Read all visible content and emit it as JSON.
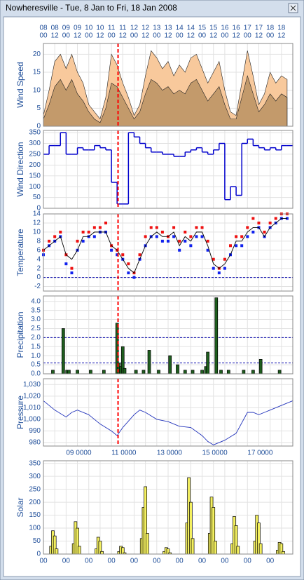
{
  "window": {
    "title": "Nowheresville - Tue, 8 Jan to Fri, 18 Jan 2008"
  },
  "chart_data": [
    {
      "type": "area",
      "y_label": "Wind Speed",
      "xlim": [
        "2008-01-08T00",
        "2008-01-19T00"
      ],
      "ylim": [
        0,
        23
      ],
      "yticks": [
        0,
        5,
        10,
        15,
        20
      ],
      "grid": true,
      "marker_x": "2008-01-11T07",
      "marker_color": "#ff0000",
      "xticks": [
        {
          "value": "2008-01-08T00",
          "label": [
            "08",
            "00"
          ]
        },
        {
          "value": "2008-01-08T12",
          "label": [
            "08",
            "12"
          ]
        },
        {
          "value": "2008-01-09T00",
          "label": [
            "09",
            "00"
          ]
        },
        {
          "value": "2008-01-09T12",
          "label": [
            "09",
            "12"
          ]
        },
        {
          "value": "2008-01-10T00",
          "label": [
            "10",
            "00"
          ]
        },
        {
          "value": "2008-01-10T12",
          "label": [
            "10",
            "12"
          ]
        },
        {
          "value": "2008-01-11T00",
          "label": [
            "11",
            "00"
          ]
        },
        {
          "value": "2008-01-11T12",
          "label": [
            "11",
            "12"
          ]
        },
        {
          "value": "2008-01-12T00",
          "label": [
            "12",
            "00"
          ]
        },
        {
          "value": "2008-01-12T12",
          "label": [
            "12",
            "12"
          ]
        },
        {
          "value": "2008-01-13T00",
          "label": [
            "13",
            "00"
          ]
        },
        {
          "value": "2008-01-13T12",
          "label": [
            "13",
            "12"
          ]
        },
        {
          "value": "2008-01-14T00",
          "label": [
            "14",
            "00"
          ]
        },
        {
          "value": "2008-01-14T12",
          "label": [
            "14",
            "12"
          ]
        },
        {
          "value": "2008-01-15T00",
          "label": [
            "15",
            "00"
          ]
        },
        {
          "value": "2008-01-15T12",
          "label": [
            "15",
            "12"
          ]
        },
        {
          "value": "2008-01-16T00",
          "label": [
            "16",
            "00"
          ]
        },
        {
          "value": "2008-01-16T12",
          "label": [
            "16",
            "12"
          ]
        },
        {
          "value": "2008-01-17T00",
          "label": [
            "17",
            "00"
          ]
        },
        {
          "value": "2008-01-17T12",
          "label": [
            "17",
            "12"
          ]
        },
        {
          "value": "2008-01-18T00",
          "label": [
            "18",
            "00"
          ]
        },
        {
          "value": "2008-01-18T12",
          "label": [
            "18",
            "12"
          ]
        }
      ],
      "x": [
        "2008-01-08T00",
        "2008-01-08T06",
        "2008-01-08T12",
        "2008-01-08T18",
        "2008-01-09T00",
        "2008-01-09T06",
        "2008-01-09T12",
        "2008-01-09T18",
        "2008-01-10T00",
        "2008-01-10T06",
        "2008-01-10T12",
        "2008-01-10T18",
        "2008-01-11T00",
        "2008-01-11T06",
        "2008-01-11T12",
        "2008-01-11T18",
        "2008-01-12T00",
        "2008-01-12T06",
        "2008-01-12T12",
        "2008-01-12T18",
        "2008-01-13T00",
        "2008-01-13T06",
        "2008-01-13T12",
        "2008-01-13T18",
        "2008-01-14T00",
        "2008-01-14T06",
        "2008-01-14T12",
        "2008-01-14T18",
        "2008-01-15T00",
        "2008-01-15T06",
        "2008-01-15T12",
        "2008-01-15T18",
        "2008-01-16T00",
        "2008-01-16T06",
        "2008-01-16T12",
        "2008-01-16T18",
        "2008-01-17T00",
        "2008-01-17T06",
        "2008-01-17T12",
        "2008-01-17T18",
        "2008-01-18T00",
        "2008-01-18T06",
        "2008-01-18T12",
        "2008-01-18T18"
      ],
      "series": [
        {
          "color": "#f8c99c",
          "values": [
            3,
            10,
            18,
            20,
            16,
            20,
            15,
            12,
            6,
            4,
            2,
            8,
            20,
            17,
            12,
            8,
            3,
            6,
            14,
            21,
            19,
            16,
            18,
            14,
            17,
            15,
            19,
            20,
            16,
            12,
            15,
            18,
            10,
            4,
            3,
            12,
            21,
            14,
            6,
            9,
            15,
            12,
            14,
            13
          ]
        },
        {
          "color": "#c39a6b",
          "values": [
            2,
            6,
            11,
            13,
            10,
            13,
            9,
            7,
            4,
            2,
            1,
            5,
            12,
            11,
            8,
            5,
            2,
            4,
            9,
            13,
            12,
            10,
            11,
            9,
            10,
            9,
            12,
            13,
            10,
            7,
            9,
            11,
            6,
            2,
            2,
            8,
            14,
            9,
            4,
            6,
            9,
            7,
            9,
            8
          ]
        }
      ]
    },
    {
      "type": "step",
      "y_label": "Wind Direction",
      "xlim": [
        "2008-01-08T00",
        "2008-01-19T00"
      ],
      "ylim": [
        0,
        360
      ],
      "yticks": [
        0,
        50,
        100,
        150,
        200,
        250,
        300,
        350
      ],
      "grid": true,
      "marker_x": "2008-01-11T07",
      "marker_color": "#ff0000",
      "color": "#0000cc",
      "x": [
        "2008-01-08T00",
        "2008-01-08T06",
        "2008-01-08T12",
        "2008-01-08T18",
        "2008-01-09T00",
        "2008-01-09T06",
        "2008-01-09T12",
        "2008-01-09T18",
        "2008-01-10T00",
        "2008-01-10T06",
        "2008-01-10T12",
        "2008-01-10T18",
        "2008-01-11T00",
        "2008-01-11T06",
        "2008-01-11T12",
        "2008-01-11T18",
        "2008-01-12T00",
        "2008-01-12T06",
        "2008-01-12T12",
        "2008-01-12T18",
        "2008-01-13T00",
        "2008-01-13T06",
        "2008-01-13T12",
        "2008-01-13T18",
        "2008-01-14T00",
        "2008-01-14T06",
        "2008-01-14T12",
        "2008-01-14T18",
        "2008-01-15T00",
        "2008-01-15T06",
        "2008-01-15T12",
        "2008-01-15T18",
        "2008-01-16T00",
        "2008-01-16T06",
        "2008-01-16T12",
        "2008-01-16T18",
        "2008-01-17T00",
        "2008-01-17T06",
        "2008-01-17T12",
        "2008-01-17T18",
        "2008-01-18T00",
        "2008-01-18T06",
        "2008-01-18T12",
        "2008-01-18T18"
      ],
      "values": [
        250,
        290,
        290,
        350,
        250,
        250,
        280,
        270,
        270,
        290,
        280,
        270,
        120,
        20,
        20,
        350,
        330,
        300,
        280,
        260,
        260,
        250,
        250,
        240,
        240,
        260,
        270,
        280,
        260,
        250,
        270,
        300,
        40,
        100,
        60,
        300,
        320,
        290,
        280,
        270,
        280,
        270,
        290,
        290
      ]
    },
    {
      "type": "line",
      "y_label": "Temperature",
      "xlim": [
        "2008-01-08T00",
        "2008-01-19T00"
      ],
      "ylim": [
        -3,
        14
      ],
      "yticks": [
        -2,
        0,
        2,
        4,
        6,
        8,
        10,
        12,
        14
      ],
      "grid": true,
      "hlines": [
        0
      ],
      "hline_color": "#0000aa",
      "marker_x": "2008-01-11T07",
      "marker_color": "#ff0000",
      "x": [
        "2008-01-08T00",
        "2008-01-08T06",
        "2008-01-08T12",
        "2008-01-08T18",
        "2008-01-09T00",
        "2008-01-09T06",
        "2008-01-09T12",
        "2008-01-09T18",
        "2008-01-10T00",
        "2008-01-10T06",
        "2008-01-10T12",
        "2008-01-10T18",
        "2008-01-11T00",
        "2008-01-11T06",
        "2008-01-11T12",
        "2008-01-11T18",
        "2008-01-12T00",
        "2008-01-12T06",
        "2008-01-12T12",
        "2008-01-12T18",
        "2008-01-13T00",
        "2008-01-13T06",
        "2008-01-13T12",
        "2008-01-13T18",
        "2008-01-14T00",
        "2008-01-14T06",
        "2008-01-14T12",
        "2008-01-14T18",
        "2008-01-15T00",
        "2008-01-15T06",
        "2008-01-15T12",
        "2008-01-15T18",
        "2008-01-16T00",
        "2008-01-16T06",
        "2008-01-16T12",
        "2008-01-16T18",
        "2008-01-17T00",
        "2008-01-17T06",
        "2008-01-17T12",
        "2008-01-17T18",
        "2008-01-18T00",
        "2008-01-18T06",
        "2008-01-18T12",
        "2008-01-18T18"
      ],
      "series": [
        {
          "color": "#ee1111",
          "style": "points",
          "values": [
            6,
            8,
            9,
            10,
            5,
            2,
            8,
            10,
            10,
            11,
            11,
            12,
            7,
            6,
            5,
            3,
            1,
            5,
            9,
            11,
            11,
            10,
            9,
            11,
            8,
            10,
            9,
            11,
            11,
            8,
            4,
            2,
            4,
            7,
            9,
            9,
            11,
            13,
            12,
            10,
            12,
            13,
            14,
            14
          ]
        },
        {
          "color": "#1122ee",
          "style": "points",
          "values": [
            5,
            7,
            8,
            9,
            3,
            1,
            6,
            8,
            9,
            9,
            10,
            10,
            6,
            5,
            4,
            1,
            0,
            4,
            7,
            9,
            9,
            8,
            8,
            9,
            6,
            8,
            7,
            9,
            9,
            6,
            2,
            1,
            2,
            5,
            7,
            7,
            9,
            10,
            11,
            9,
            11,
            12,
            13,
            13
          ]
        },
        {
          "color": "#000000",
          "style": "line",
          "values": [
            6,
            7,
            8,
            9,
            5,
            4,
            6,
            9,
            9,
            10,
            10,
            10,
            7,
            6,
            4,
            2,
            1,
            4,
            7,
            9,
            10,
            9,
            9,
            10,
            7,
            9,
            8,
            10,
            10,
            7,
            3,
            2,
            3,
            5,
            8,
            8,
            10,
            11,
            11,
            9,
            11,
            12,
            13,
            13
          ]
        }
      ]
    },
    {
      "type": "bar",
      "y_label": "Precipitation",
      "xlim": [
        "2008-01-08T00",
        "2008-01-19T00"
      ],
      "ylim": [
        0,
        4.3
      ],
      "yticks": [
        {
          "value": 0,
          "label": "0.0"
        },
        0.5,
        {
          "value": 1,
          "label": "1.0"
        },
        1.5,
        {
          "value": 2,
          "label": "2.0"
        },
        2.5,
        {
          "value": 3,
          "label": "3.0"
        },
        3.5,
        {
          "value": 4,
          "label": "4.0"
        }
      ],
      "grid": true,
      "hlines": [
        2.0,
        0.6
      ],
      "hline_color": "#0000aa",
      "marker_x": "2008-01-11T07",
      "marker_color": "#ff0000",
      "color": "#1e5e1e",
      "x": [
        "2008-01-08T10",
        "2008-01-08T21",
        "2008-01-09T01",
        "2008-01-09T03",
        "2008-01-09T12",
        "2008-01-10T02",
        "2008-01-10T16",
        "2008-01-11T06",
        "2008-01-11T08",
        "2008-01-11T10",
        "2008-01-11T12",
        "2008-01-11T14",
        "2008-01-12T02",
        "2008-01-12T10",
        "2008-01-12T16",
        "2008-01-13T02",
        "2008-01-13T14",
        "2008-01-13T22",
        "2008-01-14T06",
        "2008-01-14T14",
        "2008-01-15T00",
        "2008-01-15T04",
        "2008-01-15T06",
        "2008-01-15T15",
        "2008-01-15T20",
        "2008-01-16T04",
        "2008-01-16T20",
        "2008-01-17T06",
        "2008-01-17T14",
        "2008-01-18T10"
      ],
      "values": [
        0.2,
        2.5,
        0.2,
        0.2,
        0.2,
        0.2,
        0.2,
        2.8,
        0.6,
        0.4,
        1.5,
        0.3,
        0.2,
        0.2,
        1.3,
        0.2,
        1.0,
        0.5,
        0.2,
        0.2,
        0.2,
        0.4,
        1.2,
        4.2,
        0.2,
        0.2,
        0.2,
        0.2,
        0.8,
        0.2
      ]
    },
    {
      "type": "line",
      "y_label": "Pressure",
      "xlim": [
        "2008-01-08T00",
        "2008-01-19T00"
      ],
      "ylim": [
        977,
        1035
      ],
      "yticks": [
        980,
        990,
        {
          "value": 1000,
          "label": "1,000"
        },
        {
          "value": 1010,
          "label": "1,010"
        },
        {
          "value": 1020,
          "label": "1,020"
        },
        {
          "value": 1030,
          "label": "1,030"
        }
      ],
      "grid": true,
      "marker_x": "2008-01-11T07",
      "marker_color": "#ff0000",
      "xticks": [
        {
          "value": "2008-01-09T00",
          "label": "09 0000"
        },
        {
          "value": "2008-01-11T00",
          "label": "11 0000"
        },
        {
          "value": "2008-01-13T00",
          "label": "13 0000"
        },
        {
          "value": "2008-01-15T00",
          "label": "15 0000"
        },
        {
          "value": "2008-01-17T00",
          "label": "17 0000"
        }
      ],
      "x": [
        "2008-01-08T00",
        "2008-01-08T12",
        "2008-01-09T00",
        "2008-01-09T06",
        "2008-01-09T12",
        "2008-01-10T00",
        "2008-01-10T12",
        "2008-01-11T00",
        "2008-01-11T06",
        "2008-01-11T12",
        "2008-01-12T00",
        "2008-01-12T06",
        "2008-01-12T12",
        "2008-01-13T00",
        "2008-01-13T12",
        "2008-01-14T00",
        "2008-01-14T12",
        "2008-01-15T00",
        "2008-01-15T06",
        "2008-01-15T12",
        "2008-01-16T00",
        "2008-01-16T12",
        "2008-01-17T00",
        "2008-01-17T06",
        "2008-01-17T12",
        "2008-01-18T00",
        "2008-01-18T12",
        "2008-01-19T00"
      ],
      "series": [
        {
          "color": "#2233bb",
          "style": "line",
          "values": [
            1016,
            1008,
            1002,
            1006,
            1008,
            1004,
            996,
            990,
            986,
            993,
            1004,
            1008,
            1006,
            1000,
            998,
            994,
            993,
            986,
            981,
            978,
            982,
            988,
            1006,
            1006,
            1004,
            1008,
            1012,
            1016
          ]
        }
      ]
    },
    {
      "type": "bar",
      "y_label": "Solar",
      "xlim": [
        "2008-01-08T00",
        "2008-01-19T00"
      ],
      "ylim": [
        0,
        360
      ],
      "yticks": [
        0,
        50,
        100,
        150,
        200,
        250,
        300,
        350
      ],
      "grid": true,
      "color": "#f4f060",
      "xticks": [
        {
          "value": "2008-01-08T00",
          "label": "00"
        },
        {
          "value": "2008-01-09T00",
          "label": "00"
        },
        {
          "value": "2008-01-10T00",
          "label": "00"
        },
        {
          "value": "2008-01-11T00",
          "label": "00"
        },
        {
          "value": "2008-01-12T00",
          "label": "00"
        },
        {
          "value": "2008-01-13T00",
          "label": "00"
        },
        {
          "value": "2008-01-14T00",
          "label": "00"
        },
        {
          "value": "2008-01-15T00",
          "label": "00"
        },
        {
          "value": "2008-01-16T00",
          "label": "00"
        },
        {
          "value": "2008-01-17T00",
          "label": "00"
        },
        {
          "value": "2008-01-18T00",
          "label": "00"
        }
      ],
      "x": [
        "2008-01-08T08",
        "2008-01-08T10",
        "2008-01-08T12",
        "2008-01-08T14",
        "2008-01-09T08",
        "2008-01-09T10",
        "2008-01-09T12",
        "2008-01-09T14",
        "2008-01-10T08",
        "2008-01-10T10",
        "2008-01-10T12",
        "2008-01-10T14",
        "2008-01-11T08",
        "2008-01-11T10",
        "2008-01-11T12",
        "2008-01-11T14",
        "2008-01-12T08",
        "2008-01-12T10",
        "2008-01-12T12",
        "2008-01-12T14",
        "2008-01-13T08",
        "2008-01-13T10",
        "2008-01-13T12",
        "2008-01-13T14",
        "2008-01-14T08",
        "2008-01-14T10",
        "2008-01-14T12",
        "2008-01-14T14",
        "2008-01-15T08",
        "2008-01-15T10",
        "2008-01-15T12",
        "2008-01-15T14",
        "2008-01-16T08",
        "2008-01-16T10",
        "2008-01-16T12",
        "2008-01-16T14",
        "2008-01-17T08",
        "2008-01-17T10",
        "2008-01-17T12",
        "2008-01-17T14",
        "2008-01-18T08",
        "2008-01-18T10",
        "2008-01-18T12",
        "2008-01-18T14"
      ],
      "values": [
        30,
        90,
        70,
        20,
        40,
        125,
        100,
        30,
        20,
        65,
        50,
        10,
        10,
        30,
        25,
        5,
        60,
        180,
        260,
        80,
        10,
        25,
        20,
        5,
        120,
        295,
        200,
        60,
        80,
        220,
        180,
        50,
        40,
        145,
        110,
        30,
        50,
        150,
        120,
        40,
        15,
        45,
        40,
        10
      ]
    }
  ]
}
